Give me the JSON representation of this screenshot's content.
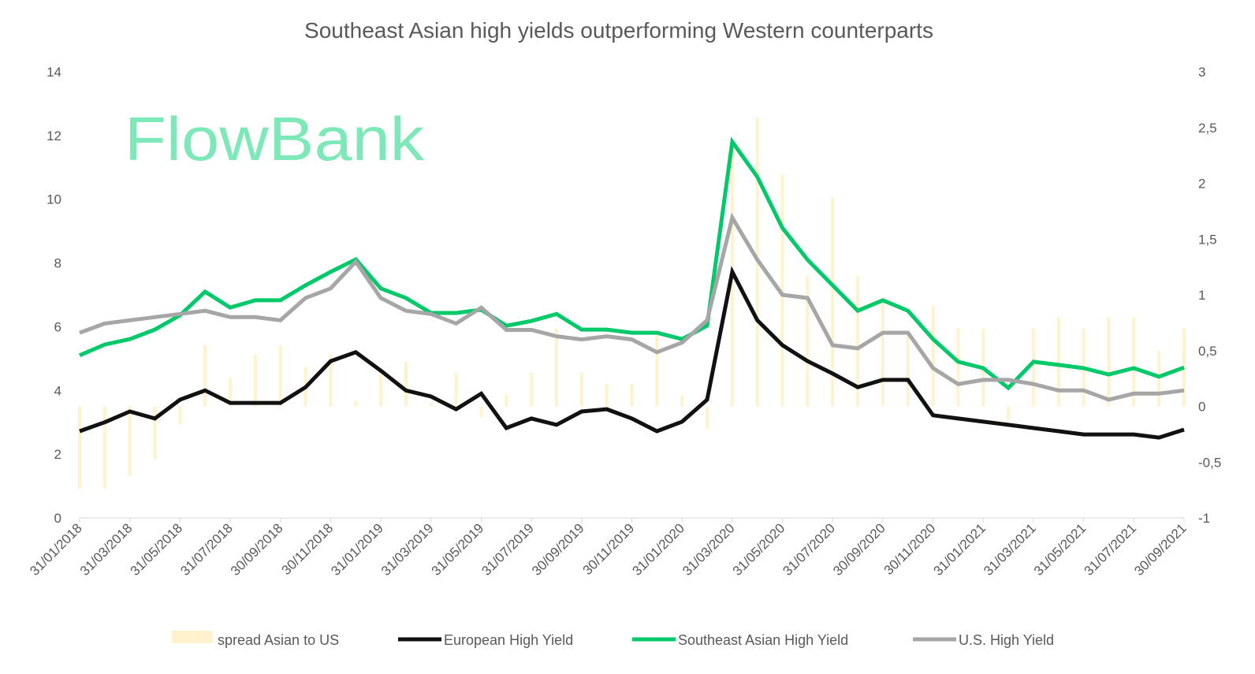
{
  "logo": {
    "part1": "Flow",
    "part2": "Bank",
    "color": "#7de8b8"
  },
  "chart_data": {
    "type": "line",
    "title": "Southeast Asian high yields outperforming Western counterparts",
    "x": [
      "31/01/2018",
      "28/02/2018",
      "31/03/2018",
      "30/04/2018",
      "31/05/2018",
      "30/06/2018",
      "31/07/2018",
      "31/08/2018",
      "30/09/2018",
      "31/10/2018",
      "30/11/2018",
      "31/12/2018",
      "31/01/2019",
      "28/02/2019",
      "31/03/2019",
      "30/04/2019",
      "31/05/2019",
      "30/06/2019",
      "31/07/2019",
      "31/08/2019",
      "30/09/2019",
      "31/10/2019",
      "30/11/2019",
      "31/12/2019",
      "31/01/2020",
      "29/02/2020",
      "31/03/2020",
      "30/04/2020",
      "31/05/2020",
      "30/06/2020",
      "31/07/2020",
      "31/08/2020",
      "30/09/2020",
      "31/10/2020",
      "30/11/2020",
      "31/12/2020",
      "31/01/2021",
      "28/02/2021",
      "31/03/2021",
      "30/04/2021",
      "31/05/2021",
      "30/06/2021",
      "31/07/2021",
      "31/08/2021",
      "30/09/2021"
    ],
    "x_tick_labels": [
      "31/01/2018",
      "31/03/2018",
      "31/05/2018",
      "31/07/2018",
      "30/09/2018",
      "30/11/2018",
      "31/01/2019",
      "31/03/2019",
      "31/05/2019",
      "31/07/2019",
      "30/09/2019",
      "30/11/2019",
      "31/01/2020",
      "31/03/2020",
      "31/05/2020",
      "31/07/2020",
      "30/09/2020",
      "30/11/2020",
      "31/01/2021",
      "31/03/2021",
      "31/05/2021",
      "31/07/2021",
      "30/09/2021"
    ],
    "ylim": [
      0,
      14
    ],
    "y_ticks": [
      "0",
      "2",
      "4",
      "6",
      "8",
      "10",
      "12",
      "14"
    ],
    "y2lim": [
      -1,
      3
    ],
    "y2_ticks": [
      "-1",
      "-0,5",
      "0",
      "0,5",
      "1",
      "1,5",
      "2",
      "2,5",
      "3"
    ],
    "legend_position": "bottom",
    "series": [
      {
        "name": "spread Asian to US",
        "type": "bar",
        "axis": "right",
        "color": "#fff2cc",
        "values": [
          -0.74,
          -0.74,
          -0.62,
          -0.47,
          -0.16,
          0.55,
          0.25,
          0.46,
          0.55,
          0.35,
          0.46,
          0.05,
          0.33,
          0.4,
          0.03,
          0.3,
          -0.1,
          0.1,
          0.3,
          0.7,
          0.3,
          0.2,
          0.2,
          0.67,
          0.1,
          -0.2,
          2.38,
          2.59,
          2.08,
          1.17,
          1.87,
          1.17,
          0.97,
          0.66,
          0.9,
          0.7,
          0.7,
          -0.12,
          0.7,
          0.8,
          0.7,
          0.8,
          0.8,
          0.5,
          0.7
        ]
      },
      {
        "name": "European High Yield",
        "type": "line",
        "axis": "left",
        "color": "#111111",
        "values": [
          2.72,
          3.0,
          3.34,
          3.12,
          3.71,
          4.0,
          3.61,
          3.61,
          3.61,
          4.1,
          4.92,
          5.2,
          4.62,
          4.0,
          3.81,
          3.41,
          3.9,
          2.82,
          3.12,
          2.92,
          3.34,
          3.41,
          3.12,
          2.72,
          3.02,
          3.71,
          7.72,
          6.2,
          5.42,
          4.92,
          4.53,
          4.1,
          4.33,
          4.33,
          3.22,
          3.12,
          3.02,
          2.92,
          2.82,
          2.72,
          2.62,
          2.62,
          2.62,
          2.52,
          2.77
        ]
      },
      {
        "name": "Southeast Asian High Yield",
        "type": "line",
        "axis": "left",
        "color": "#00c96a",
        "values": [
          5.1,
          5.44,
          5.61,
          5.91,
          6.36,
          7.1,
          6.6,
          6.83,
          6.83,
          7.3,
          7.72,
          8.11,
          7.2,
          6.9,
          6.43,
          6.43,
          6.53,
          6.03,
          6.18,
          6.4,
          5.91,
          5.91,
          5.81,
          5.81,
          5.61,
          6.03,
          11.8,
          10.7,
          9.1,
          8.1,
          7.3,
          6.5,
          6.83,
          6.5,
          5.61,
          4.9,
          4.7,
          4.08,
          4.9,
          4.8,
          4.7,
          4.5,
          4.7,
          4.43,
          4.72
        ]
      },
      {
        "name": "U.S. High Yield",
        "type": "line",
        "axis": "left",
        "color": "#a6a6a6",
        "values": [
          5.81,
          6.1,
          6.2,
          6.3,
          6.4,
          6.5,
          6.3,
          6.3,
          6.2,
          6.9,
          7.2,
          8.04,
          6.9,
          6.5,
          6.4,
          6.1,
          6.6,
          5.9,
          5.9,
          5.7,
          5.6,
          5.7,
          5.6,
          5.2,
          5.5,
          6.2,
          9.42,
          8.1,
          7.0,
          6.9,
          5.42,
          5.32,
          5.81,
          5.81,
          4.7,
          4.2,
          4.33,
          4.33,
          4.2,
          4.0,
          4.0,
          3.71,
          3.9,
          3.9,
          4.0
        ]
      }
    ]
  }
}
